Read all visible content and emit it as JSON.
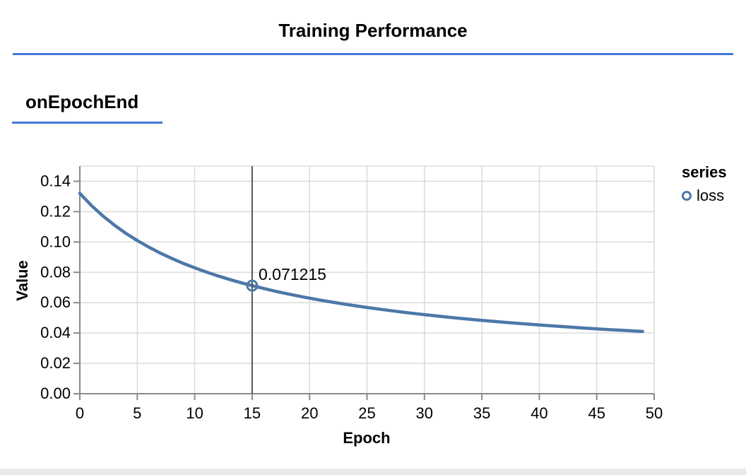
{
  "header": {
    "title": "Training Performance"
  },
  "section": {
    "heading": "onEpochEnd"
  },
  "colors": {
    "accent_blue": "#4377d7",
    "series_line": "#4c78a8",
    "axis": "#8a8a8a",
    "grid": "#dddddd",
    "crosshair": "#555555",
    "bottom_strip": "#e9e9e9",
    "text": "#000000"
  },
  "legend": {
    "title": "series",
    "items": [
      {
        "label": "loss",
        "symbol": "circle-outline"
      }
    ]
  },
  "tooltip": {
    "epoch": 15,
    "value_label": "0.071215"
  },
  "chart_data": {
    "type": "line",
    "title": "",
    "xlabel": "Epoch",
    "ylabel": "Value",
    "xlim": [
      0,
      50
    ],
    "ylim": [
      0,
      0.15
    ],
    "grid": true,
    "legend_position": "right",
    "x_ticks": {
      "values": [
        0,
        5,
        10,
        15,
        20,
        25,
        30,
        35,
        40,
        45,
        50
      ],
      "labels": [
        "0",
        "5",
        "10",
        "15",
        "20",
        "25",
        "30",
        "35",
        "40",
        "45",
        "50"
      ]
    },
    "y_ticks": {
      "values": [
        0,
        0.02,
        0.04,
        0.06,
        0.08,
        0.1,
        0.12,
        0.14
      ],
      "labels": [
        "0.00",
        "0.02",
        "0.04",
        "0.06",
        "0.08",
        "0.10",
        "0.12",
        "0.14"
      ]
    },
    "series": [
      {
        "name": "loss",
        "x": [
          0,
          1,
          2,
          3,
          4,
          5,
          6,
          7,
          8,
          9,
          10,
          11,
          12,
          13,
          14,
          15,
          16,
          17,
          18,
          19,
          20,
          21,
          22,
          23,
          24,
          25,
          26,
          27,
          28,
          29,
          30,
          31,
          32,
          33,
          34,
          35,
          36,
          37,
          38,
          39,
          40,
          41,
          42,
          43,
          44,
          45,
          46,
          47,
          48,
          49
        ],
        "values": [
          0.132,
          0.12411,
          0.11721,
          0.11114,
          0.10575,
          0.10094,
          0.09661,
          0.09271,
          0.08916,
          0.08592,
          0.08295,
          0.08022,
          0.07771,
          0.07539,
          0.07323,
          0.071215,
          0.06935,
          0.0676,
          0.06596,
          0.06441,
          0.06296,
          0.0616,
          0.06031,
          0.05909,
          0.05794,
          0.05684,
          0.0558,
          0.05481,
          0.05387,
          0.05297,
          0.05212,
          0.0513,
          0.05052,
          0.04977,
          0.04905,
          0.04837,
          0.04771,
          0.04707,
          0.04646,
          0.04587,
          0.04531,
          0.04476,
          0.04424,
          0.04373,
          0.04324,
          0.04277,
          0.04231,
          0.04187,
          0.04144,
          0.04103
        ]
      }
    ],
    "highlight": {
      "x": 15,
      "y": 0.071215,
      "label": "0.071215"
    }
  }
}
